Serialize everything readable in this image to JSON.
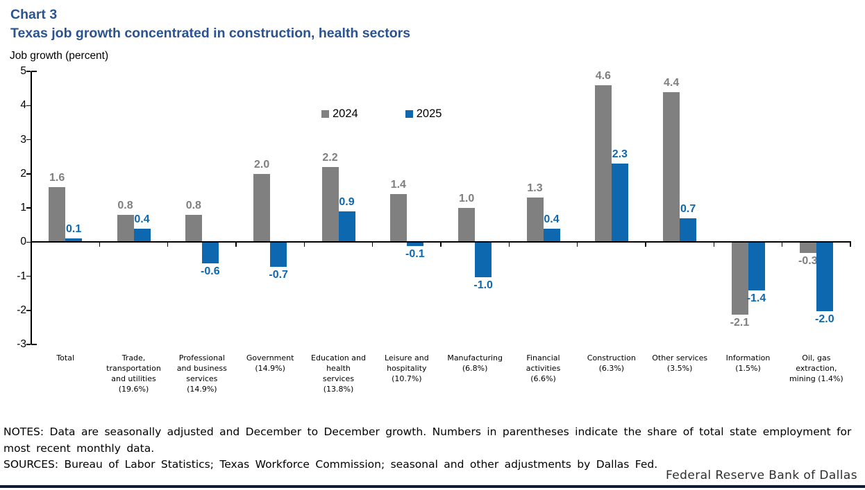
{
  "page": {
    "title": "Chart 3",
    "subtitle": "Texas job growth concentrated in construction, health sectors",
    "axis_title": "Job growth (percent)",
    "notes_lines": [
      "NOTES: Data are seasonally adjusted and December to December growth. Numbers in parentheses indicate the share of total state employment for",
      "most recent monthly data."
    ],
    "sources": "SOURCES: Bureau of Labor Statistics; Texas Workforce Commission; seasonal and other adjustments by Dallas Fed.",
    "wordmark": "Federal Reserve Bank of Dallas"
  },
  "colors": {
    "title": "#2a5390",
    "gray_series": "#808080",
    "blue_series": "#0e68b0",
    "gray_label": "#7f7f7f",
    "axis": "#000000",
    "footer_bar": "#101b35"
  },
  "chart_data": {
    "type": "bar",
    "title": "Chart 3",
    "subtitle": "Texas job growth concentrated in construction, health sectors",
    "ylabel": "Job growth (percent)",
    "xlabel": "",
    "ylim": [
      -3,
      5
    ],
    "yticks": [
      5,
      4,
      3,
      2,
      1,
      0,
      -1,
      -2,
      -3
    ],
    "grid": false,
    "legend_position": "inside-top-center",
    "value_labels": true,
    "categories": [
      "Total",
      "Trade, transportation and utilities (19.6%)",
      "Professional and business services (14.9%)",
      "Government (14.9%)",
      "Education and health services (13.8%)",
      "Leisure and hospitality (10.7%)",
      "Manufacturing (6.8%)",
      "Financial activities (6.6%)",
      "Construction (6.3%)",
      "Other services (3.5%)",
      "Information (1.5%)",
      "Oil, gas extraction, mining (1.4%)"
    ],
    "category_lines": [
      [
        "Total"
      ],
      [
        "Trade,",
        "transportation",
        "and utilities",
        "(19.6%)"
      ],
      [
        "Professional",
        "and business",
        "services",
        "(14.9%)"
      ],
      [
        "Government",
        "(14.9%)"
      ],
      [
        "Education and",
        "health",
        "services",
        "(13.8%)"
      ],
      [
        "Leisure and",
        "hospitality",
        "(10.7%)"
      ],
      [
        "Manufacturing",
        "(6.8%)"
      ],
      [
        "Financial",
        "activities",
        "(6.6%)"
      ],
      [
        "Construction",
        "(6.3%)"
      ],
      [
        "Other services",
        "(3.5%)"
      ],
      [
        "Information",
        "(1.5%)"
      ],
      [
        "Oil, gas",
        "extraction,",
        "mining (1.4%)"
      ]
    ],
    "series": [
      {
        "name": "2024",
        "color": "#808080",
        "values": [
          1.6,
          0.8,
          0.8,
          2.0,
          2.2,
          1.4,
          1.0,
          1.3,
          4.6,
          4.4,
          -2.1,
          -0.3
        ]
      },
      {
        "name": "2025",
        "color": "#0e68b0",
        "values": [
          0.1,
          0.4,
          -0.6,
          -0.7,
          0.9,
          -0.1,
          -1.0,
          0.4,
          2.3,
          0.7,
          -1.4,
          -2.0
        ]
      }
    ]
  }
}
